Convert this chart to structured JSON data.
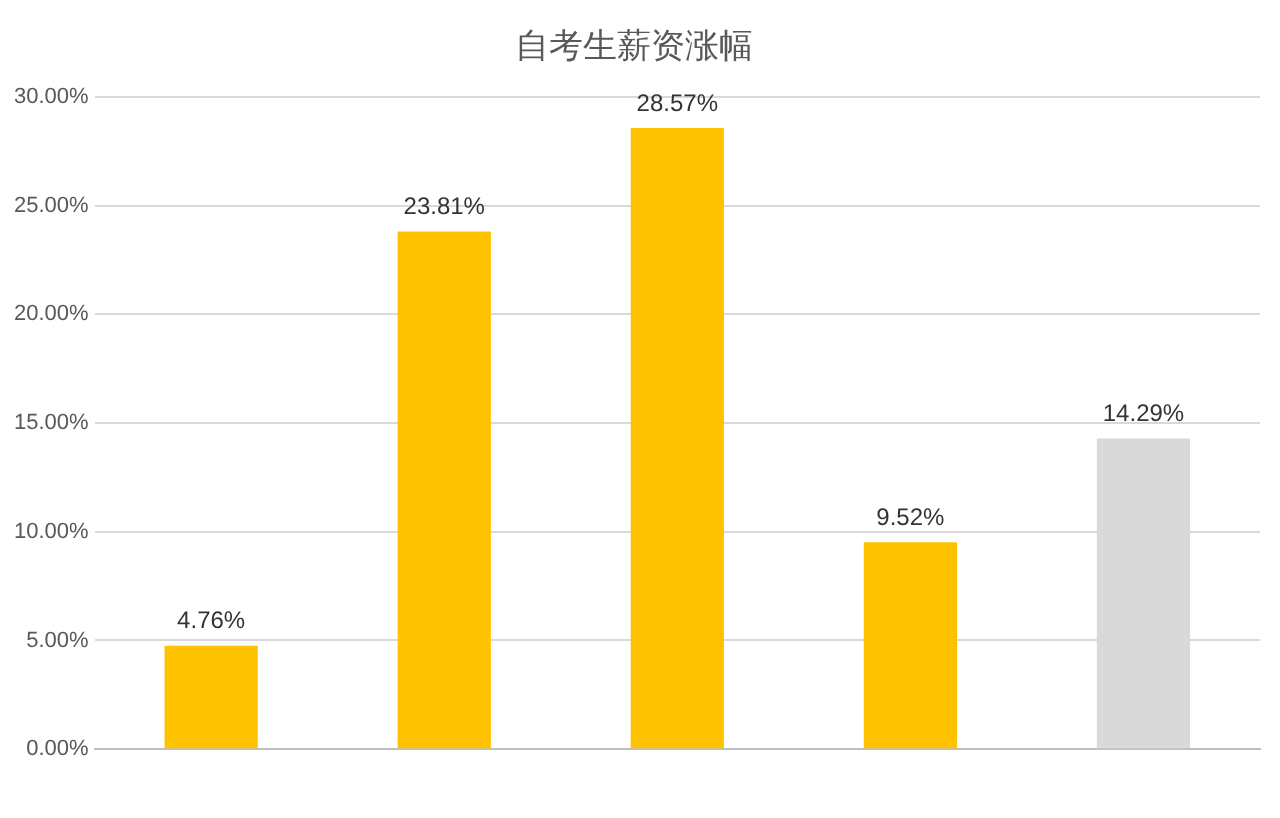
{
  "chart_data": {
    "type": "bar",
    "title": "自考生薪资涨幅",
    "categories": [
      null,
      null,
      null,
      null,
      null
    ],
    "values": [
      4.76,
      23.81,
      28.57,
      9.52,
      14.29
    ],
    "colors": [
      "#fec200",
      "#fec200",
      "#fec200",
      "#fec200",
      "#d9d9d9"
    ],
    "value_labels": [
      "4.76%",
      "23.81%",
      "28.57%",
      "9.52%",
      "14.29%"
    ],
    "ylim": [
      0,
      30
    ],
    "yticks": [
      {
        "value": 0,
        "label": "0.00%"
      },
      {
        "value": 5,
        "label": "5.00%"
      },
      {
        "value": 10,
        "label": "10.00%"
      },
      {
        "value": 15,
        "label": "15.00%"
      },
      {
        "value": 20,
        "label": "20.00%"
      },
      {
        "value": 25,
        "label": "25.00%"
      },
      {
        "value": 30,
        "label": "30.00%"
      }
    ],
    "grid": "y"
  }
}
